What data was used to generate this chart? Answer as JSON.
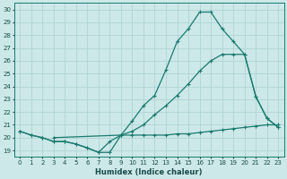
{
  "xlabel": "Humidex (Indice chaleur)",
  "bg_color": "#cce8e8",
  "grid_color": "#b0d4d4",
  "line_color": "#1a7a6e",
  "xlim": [
    -0.5,
    23.5
  ],
  "ylim": [
    18.5,
    30.5
  ],
  "xticks": [
    0,
    1,
    2,
    3,
    4,
    5,
    6,
    7,
    8,
    9,
    10,
    11,
    12,
    13,
    14,
    15,
    16,
    17,
    18,
    19,
    20,
    21,
    22,
    23
  ],
  "yticks": [
    19,
    20,
    21,
    22,
    23,
    24,
    25,
    26,
    27,
    28,
    29,
    30
  ],
  "line1_x": [
    0,
    1,
    2,
    3,
    4,
    5,
    6,
    7,
    8,
    9,
    10,
    11,
    12,
    13,
    14,
    15,
    16,
    17,
    18,
    19,
    20,
    21,
    22,
    23
  ],
  "line1_y": [
    20.5,
    20.2,
    20.0,
    19.7,
    19.7,
    19.5,
    19.2,
    18.85,
    18.85,
    20.2,
    20.2,
    20.2,
    20.2,
    20.2,
    20.3,
    20.3,
    20.4,
    20.5,
    20.6,
    20.7,
    20.8,
    20.9,
    21.0,
    21.0
  ],
  "line2_x": [
    0,
    1,
    2,
    3,
    4,
    5,
    6,
    7,
    8,
    9,
    10,
    11,
    12,
    13,
    14,
    15,
    16,
    17,
    18,
    19,
    20,
    21,
    22,
    23
  ],
  "line2_y": [
    20.5,
    20.2,
    20.0,
    19.7,
    19.7,
    19.5,
    19.2,
    18.85,
    19.7,
    20.2,
    21.3,
    22.5,
    23.3,
    25.3,
    27.5,
    28.5,
    29.8,
    29.8,
    28.5,
    27.5,
    26.5,
    23.2,
    21.5,
    20.8
  ],
  "line3_x": [
    3,
    9,
    10,
    11,
    12,
    13,
    14,
    15,
    16,
    17,
    18,
    19,
    20,
    21,
    22,
    23
  ],
  "line3_y": [
    20.0,
    20.2,
    20.5,
    21.0,
    21.8,
    22.5,
    23.3,
    24.2,
    25.2,
    26.0,
    26.5,
    26.5,
    26.5,
    23.2,
    21.5,
    20.8
  ]
}
